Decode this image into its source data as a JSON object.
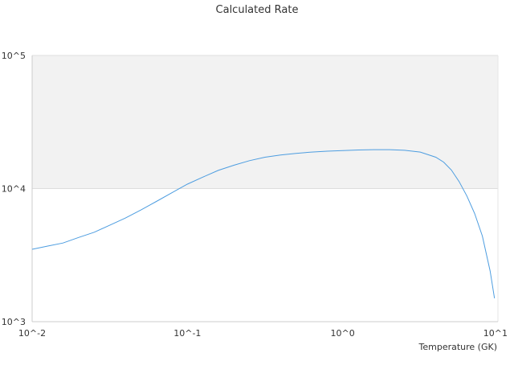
{
  "chart_data": {
    "type": "line",
    "title": "Calculated Rate",
    "xlabel": "Temperature (GK)",
    "ylabel": "",
    "x_scale": "log",
    "y_scale": "log",
    "xlim": [
      0.01,
      10
    ],
    "ylim": [
      1000,
      100000
    ],
    "x_ticks": [
      {
        "value": 0.01,
        "label": "10^-2"
      },
      {
        "value": 0.1,
        "label": "10^-1"
      },
      {
        "value": 1,
        "label": "10^0"
      },
      {
        "value": 10,
        "label": "10^1"
      }
    ],
    "y_ticks": [
      {
        "value": 1000,
        "label": "10^3"
      },
      {
        "value": 10000,
        "label": "10^4"
      },
      {
        "value": 100000,
        "label": "10^5"
      }
    ],
    "grid": true,
    "legend": "none",
    "shaded_band": {
      "y_from": 10000,
      "y_to": 100000,
      "color": "#f2f2f2"
    },
    "colors": {
      "line": "#4d9de0",
      "axis": "#cccccc",
      "band": "#f2f2f2"
    },
    "series": [
      {
        "x": [
          0.01,
          0.0126,
          0.0158,
          0.02,
          0.0251,
          0.0316,
          0.0398,
          0.0501,
          0.0631,
          0.0794,
          0.1,
          0.126,
          0.158,
          0.2,
          0.251,
          0.316,
          0.398,
          0.501,
          0.631,
          0.794,
          1.0,
          1.26,
          1.58,
          2.0,
          2.51,
          3.16,
          3.98,
          4.47,
          5.01,
          5.62,
          6.31,
          7.08,
          7.94,
          8.91,
          9.5
        ],
        "y": [
          3500,
          3700,
          3900,
          4300,
          4700,
          5300,
          6000,
          6900,
          8000,
          9300,
          10800,
          12200,
          13700,
          15000,
          16200,
          17200,
          17900,
          18400,
          18800,
          19100,
          19300,
          19500,
          19600,
          19600,
          19400,
          18800,
          17200,
          15800,
          13800,
          11300,
          8800,
          6500,
          4400,
          2400,
          1500
        ]
      }
    ]
  }
}
